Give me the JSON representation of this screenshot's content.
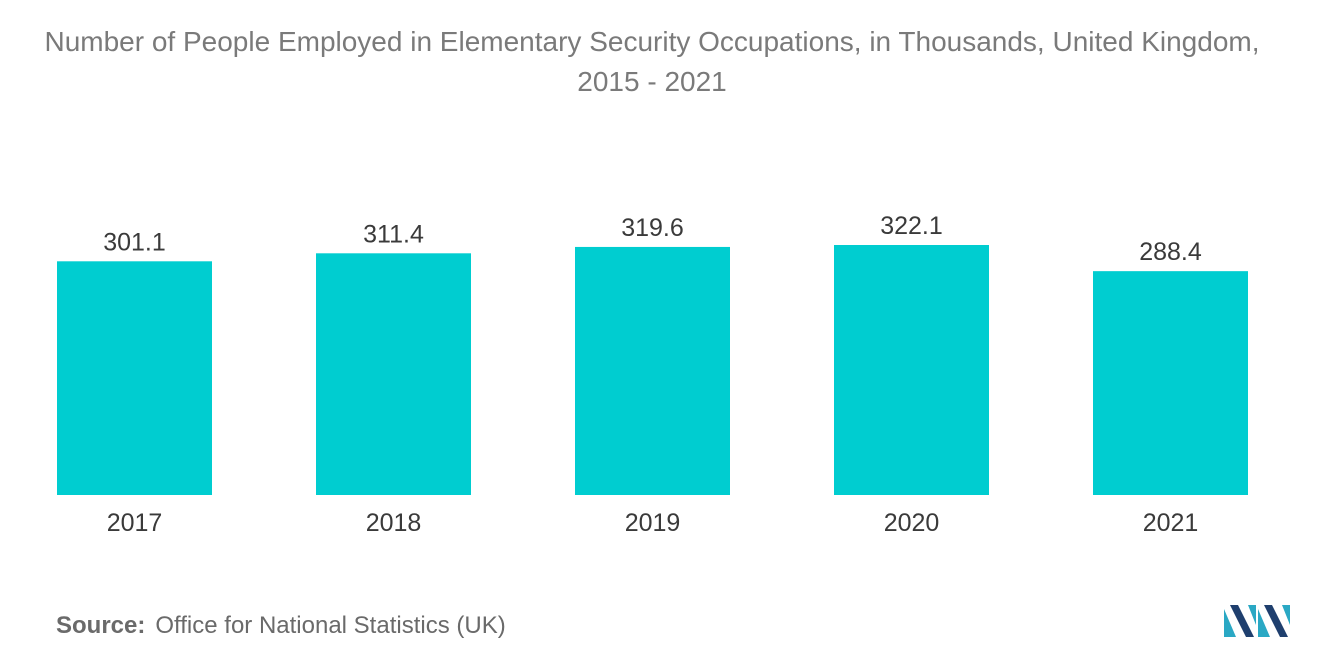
{
  "chart_data": {
    "type": "bar",
    "title": "Number of People Employed in Elementary Security Occupations, in Thousands, United Kingdom, 2015 - 2021",
    "categories": [
      "2017",
      "2018",
      "2019",
      "2020",
      "2021"
    ],
    "values": [
      301.1,
      311.4,
      319.6,
      322.1,
      288.4
    ],
    "value_labels": [
      "301.1",
      "311.4",
      "319.6",
      "322.1",
      "288.4"
    ],
    "ylim": [
      0,
      322.1
    ],
    "grid": false,
    "legend": "none",
    "bar_color": "#00cdd0"
  },
  "source": {
    "label": "Source:",
    "text": "Office for National Statistics (UK)"
  },
  "logo": {
    "icon": "mordor-intelligence-logo-icon",
    "colors": [
      "#1f3f6e",
      "#2aa8c4"
    ]
  }
}
